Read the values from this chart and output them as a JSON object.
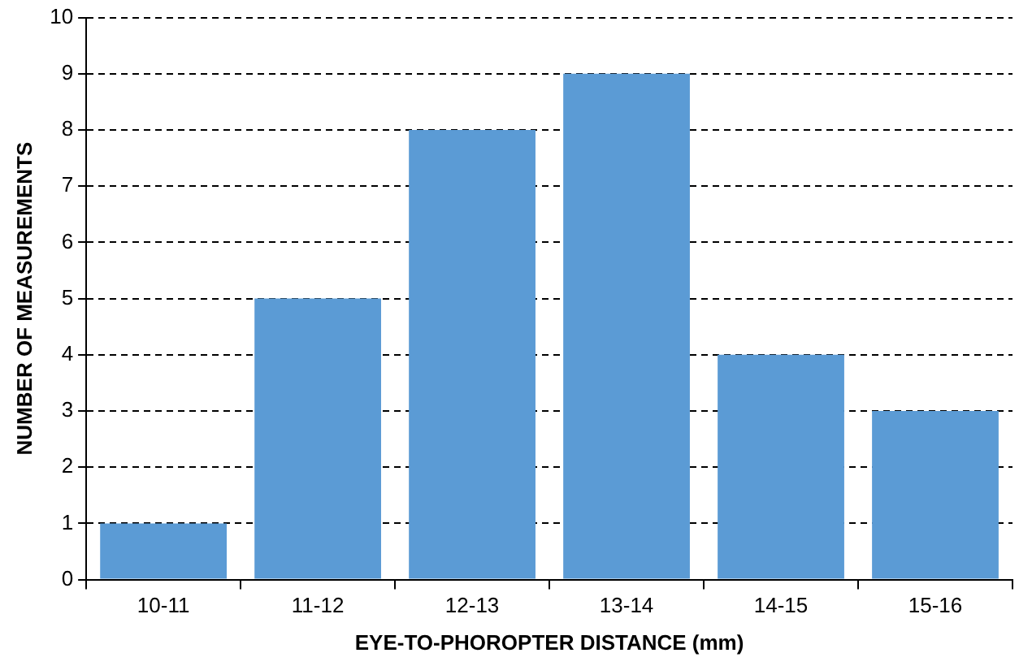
{
  "chart_data": {
    "type": "bar",
    "categories": [
      "10-11",
      "11-12",
      "12-13",
      "13-14",
      "14-15",
      "15-16"
    ],
    "values": [
      1,
      5,
      8,
      9,
      4,
      3
    ],
    "color": "#5b9bd5",
    "xlabel": "EYE-TO-PHOROPTER DISTANCE (mm)",
    "ylabel": "NUMBER OF MEASUREMENTS",
    "ylim": [
      0,
      10
    ],
    "yticks": [
      0,
      1,
      2,
      3,
      4,
      5,
      6,
      7,
      8,
      9,
      10
    ],
    "grid": "y",
    "legend": false
  }
}
